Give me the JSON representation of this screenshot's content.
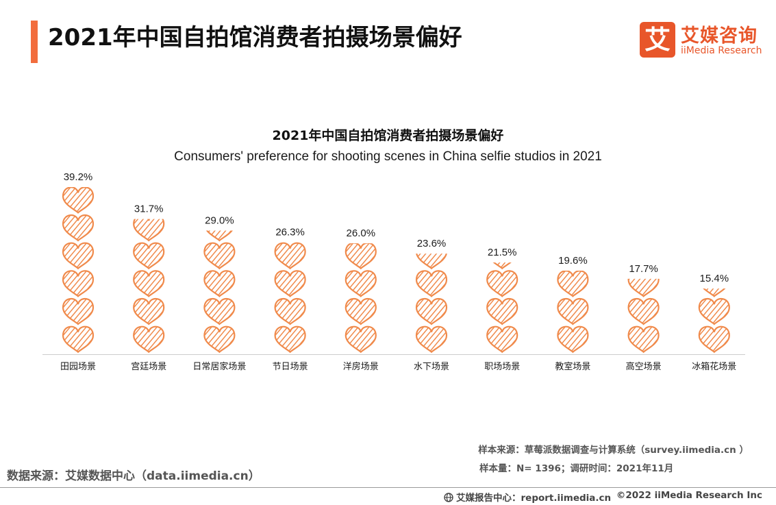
{
  "header": {
    "title": "2021年中国自拍馆消费者拍摄场景偏好",
    "accent_color": "#f26d3d"
  },
  "logo": {
    "mark": "艾",
    "name_cn": "艾媒咨询",
    "name_en": "iiMedia Research",
    "color": "#e8562a"
  },
  "chart_data": {
    "type": "bar",
    "title": "2021年中国自拍馆消费者拍摄场景偏好",
    "subtitle": "Consumers' preference for shooting scenes in China selfie studios in 2021",
    "categories": [
      "田园场景",
      "宫廷场景",
      "日常居家场景",
      "节日场景",
      "洋房场景",
      "水下场景",
      "职场场景",
      "教室场景",
      "高空场景",
      "冰箱花场景"
    ],
    "values": [
      39.2,
      31.7,
      29.0,
      26.3,
      26.0,
      23.6,
      21.5,
      19.6,
      17.7,
      15.4
    ],
    "value_labels": [
      "39.2%",
      "31.7%",
      "29.0%",
      "26.3%",
      "26.0%",
      "23.6%",
      "21.5%",
      "19.6%",
      "17.7%",
      "15.4%"
    ],
    "unit": "%",
    "ylim": [
      0,
      39.2
    ],
    "grid": false,
    "mark_icon": "heart-icon",
    "mark_color": "#f08a4b"
  },
  "notes": {
    "sample_source": "样本来源：草莓派数据调查与计算系统（survey.iimedia.cn ）",
    "sample_size": "样本量：N= 1396；调研时间：2021年11月",
    "data_source": "数据来源：艾媒数据中心（data.iimedia.cn）"
  },
  "footer": {
    "report_center": "艾媒报告中心：report.iimedia.cn",
    "copyright": "©2022  iiMedia Research  Inc"
  }
}
